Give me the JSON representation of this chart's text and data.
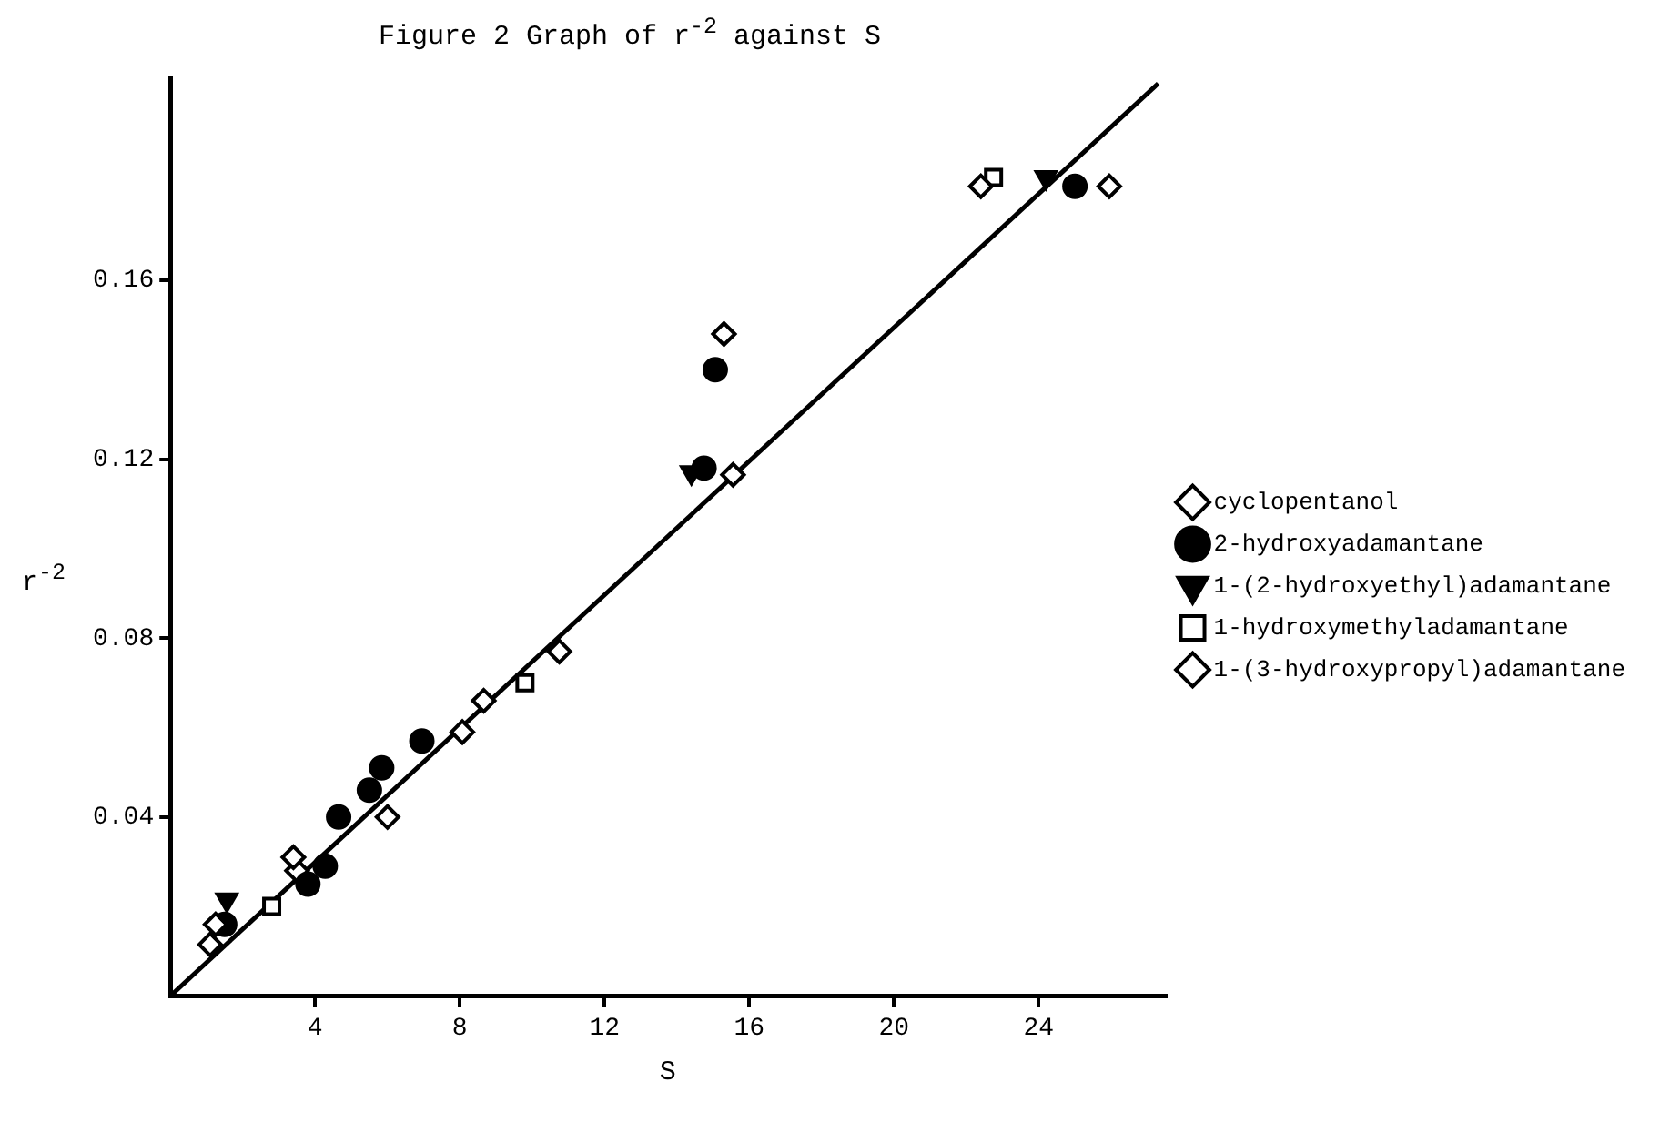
{
  "chart_data": {
    "type": "scatter",
    "title": "Figure 2   Graph of r$^{-2}$ against S",
    "xlabel": "S",
    "ylabel": "r$^{-2}$",
    "xlim": [
      0,
      27.5
    ],
    "ylim": [
      0,
      0.205
    ],
    "xticks": [
      4,
      8,
      12,
      16,
      20,
      24
    ],
    "yticks": [
      0.04,
      0.08,
      0.12,
      0.16
    ],
    "grid": false,
    "legend": "right",
    "series": [
      {
        "name": "cyclopentanol",
        "color": "#000000",
        "marker": "diamond",
        "x": [
          1.25,
          3.4,
          6.0,
          8.07,
          8.66,
          15.3,
          22.4
        ],
        "values": [
          0.016,
          0.031,
          0.04,
          0.059,
          0.066,
          0.148,
          0.181
        ]
      },
      {
        "name": "2-hydroxyadamantane",
        "color": "#000000",
        "marker": "circle",
        "x": [
          1.5,
          3.8,
          4.28,
          4.65,
          5.5,
          5.84,
          6.95,
          14.75,
          15.06,
          25.0
        ],
        "values": [
          0.016,
          0.025,
          0.029,
          0.04,
          0.046,
          0.051,
          0.057,
          0.118,
          0.14,
          0.181
        ]
      },
      {
        "name": "1-(2-hydroxyethyl)adamantane",
        "color": "#000000",
        "marker": "triangle",
        "x": [
          1.56,
          14.4,
          24.2
        ],
        "values": [
          0.0215,
          0.117,
          0.183
        ]
      },
      {
        "name": "1-hydroxymethyladamantane",
        "color": "#000000",
        "marker": "square",
        "x": [
          2.8,
          9.8,
          22.75
        ],
        "values": [
          0.02,
          0.07,
          0.183
        ]
      },
      {
        "name": "1-(3-hydroxypropyl)adamantane",
        "color": "#000000",
        "marker": "diamond",
        "x": [
          1.1,
          3.5,
          10.75,
          15.55,
          25.95
        ],
        "values": [
          0.0115,
          0.028,
          0.077,
          0.1165,
          0.181
        ]
      },
      {
        "type": "line",
        "color": "#000000",
        "marker": "none",
        "x": [
          0,
          27.3
        ],
        "values": [
          0,
          0.204
        ]
      }
    ]
  }
}
